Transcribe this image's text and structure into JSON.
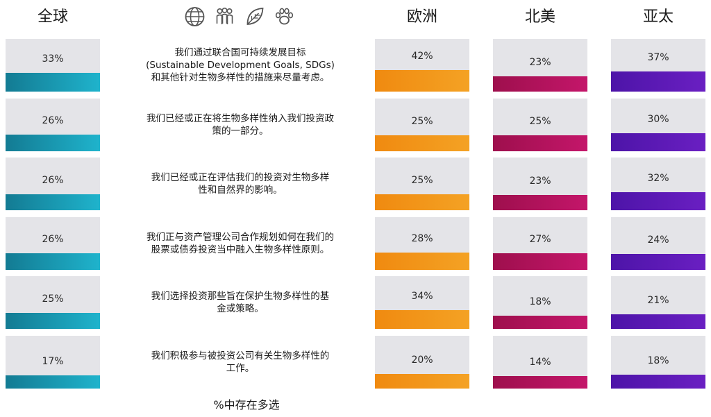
{
  "headers": {
    "global": "全球",
    "europe": "欧洲",
    "north_america": "北美",
    "asia_pacific": "亚太"
  },
  "icons": [
    "globe-icon",
    "people-icon",
    "leaf-icon",
    "paw-icon"
  ],
  "colors": {
    "global": "#1a9bb5",
    "europe": "#f29418",
    "north_america": "#b0125c",
    "asia_pacific": "#5a18b5",
    "track": "#e4e4e8"
  },
  "footnote": "%中存在多选",
  "chart_data": {
    "type": "bar",
    "categories": [
      "我们通过联合国可持续发展目标\n(Sustainable Development Goals, SDGs)\n和其他针对生物多样性的措施来尽量考虑。",
      "我们已经或正在将生物多样性纳入我们投资政\n策的一部分。",
      "我们已经或正在评估我们的投资对生物多样\n性和自然界的影响。",
      "我们正与资产管理公司合作规划如何在我们的\n股票或债券投资当中融入生物多样性原则。",
      "我们选择投资那些旨在保护生物多样性的基\n金或策略。",
      "我们积极参与被投资公司有关生物多样性的\n工作。"
    ],
    "series": [
      {
        "name": "全球",
        "values": [
          33,
          26,
          26,
          26,
          25,
          17
        ],
        "labels": [
          "33%",
          "26%",
          "26%",
          "26%",
          "25%",
          "17%"
        ]
      },
      {
        "name": "欧洲",
        "values": [
          42,
          25,
          25,
          28,
          34,
          20
        ],
        "labels": [
          "42%",
          "25%",
          "25%",
          "28%",
          "34%",
          "20%"
        ]
      },
      {
        "name": "北美",
        "values": [
          23,
          25,
          23,
          27,
          18,
          14
        ],
        "labels": [
          "23%",
          "25%",
          "23%",
          "27%",
          "18%",
          "14%"
        ]
      },
      {
        "name": "亚太",
        "values": [
          37,
          30,
          32,
          24,
          21,
          18
        ],
        "labels": [
          "37%",
          "30%",
          "32%",
          "24%",
          "21%",
          "18%"
        ]
      }
    ],
    "ylim": [
      0,
      100
    ]
  }
}
